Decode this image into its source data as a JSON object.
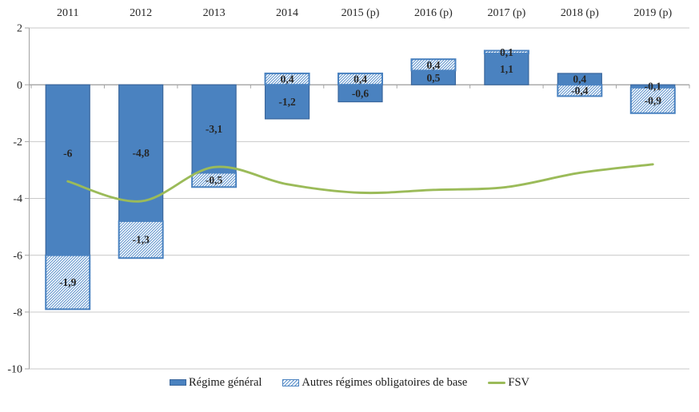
{
  "chart_data": {
    "type": "bar",
    "subtype": "stacked-bars-with-line-overlay",
    "title": "",
    "categories": [
      "2011",
      "2012",
      "2013",
      "2014",
      "2015 (p)",
      "2016 (p)",
      "2017 (p)",
      "2018 (p)",
      "2019 (p)"
    ],
    "series": [
      {
        "name": "Régime général",
        "kind": "bar-solid",
        "values": [
          -6,
          -4.8,
          -3.1,
          -1.2,
          -0.6,
          0.5,
          1.1,
          0.4,
          -0.1
        ],
        "labels": [
          "-6",
          "-4,8",
          "-3,1",
          "-1,2",
          "-0,6",
          "0,5",
          "1,1",
          "0,4",
          "-0,1"
        ],
        "label_dy": [
          -21,
          0,
          0,
          0,
          0,
          0,
          0,
          0,
          0
        ]
      },
      {
        "name": "Autres régimes obligatoires de base",
        "kind": "bar-hatched",
        "values": [
          -1.9,
          -1.3,
          -0.5,
          0.4,
          0.4,
          0.4,
          0.1,
          -0.4,
          -0.9
        ],
        "labels": [
          "-1,9",
          "-1,3",
          "-0,5",
          "0,4",
          "0,4",
          "0,4",
          "0,1",
          "-0,4",
          "-0,9"
        ],
        "label_dy": [
          0,
          0,
          0,
          0,
          0,
          0,
          0,
          0,
          0
        ]
      },
      {
        "name": "FSV",
        "kind": "line",
        "values": [
          -3.4,
          -4.1,
          -2.9,
          -3.5,
          -3.8,
          -3.7,
          -3.6,
          -3.1,
          -2.8
        ]
      }
    ],
    "stacking": "stacked-by-sign",
    "smooth_line": true,
    "ylim": [
      -10,
      2
    ],
    "ytick_values": [
      2,
      0,
      -2,
      -4,
      -6,
      -8,
      -10
    ],
    "ytick_labels": [
      "2",
      "0",
      "-2",
      "-4",
      "-6",
      "-8",
      "-10"
    ],
    "grid": true,
    "legend_position": "bottom",
    "category_axis_position": "top",
    "colors": {
      "bar_solid": "#4a82c0",
      "bar_solid_border": "#3a669c",
      "hatch_line": "#5d92cc",
      "hatch_border": "#4a82c0",
      "fsv_line": "#9bbb59",
      "gridline": "#c9c9c9",
      "axis": "#a3a3a3",
      "text": "#262626",
      "label_text": "#000000"
    }
  }
}
